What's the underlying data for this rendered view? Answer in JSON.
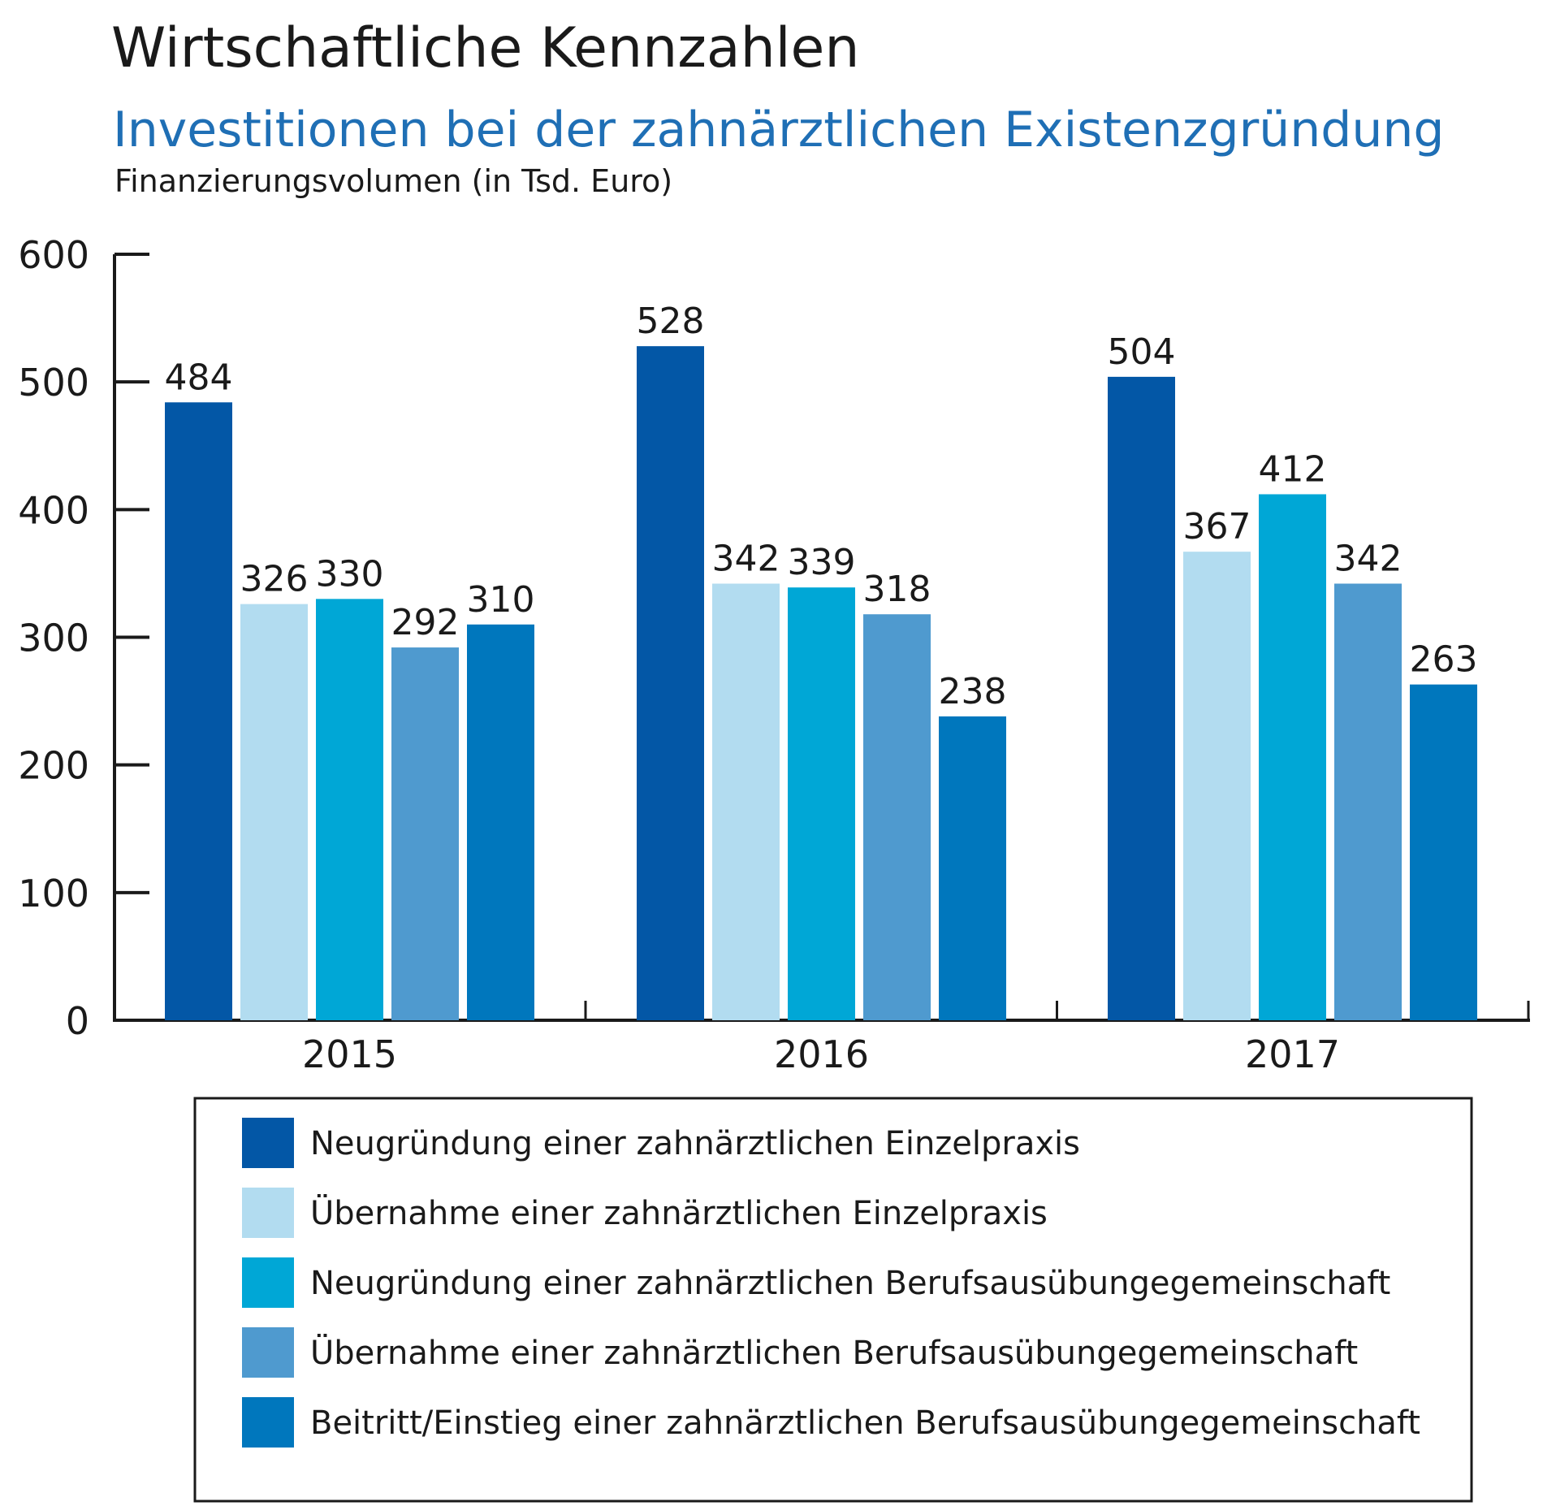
{
  "chart_data": {
    "type": "bar",
    "title": "Wirtschaftliche Kennzahlen",
    "subtitle": "Investitionen bei der zahnärztlichen Existenzgründung",
    "unit_label": "Finanzierungsvolumen (in Tsd. Euro)",
    "categories": [
      "2015",
      "2016",
      "2017"
    ],
    "ylim": [
      0,
      600
    ],
    "yticks": [
      "0",
      "100",
      "200",
      "300",
      "400",
      "500",
      "600"
    ],
    "grid": false,
    "legend_position": "bottom",
    "series": [
      {
        "name": "Neugründung einer zahnärztlichen Einzelpraxis",
        "color": "#0357a6",
        "values": [
          484,
          528,
          504
        ]
      },
      {
        "name": "Übernahme einer zahnärztlichen Einzelpraxis",
        "color": "#b2dcf0",
        "values": [
          326,
          342,
          367
        ]
      },
      {
        "name": "Neugründung einer zahnärztlichen Berufsausübungegemeinschaft",
        "color": "#00a7d6",
        "values": [
          330,
          339,
          412
        ]
      },
      {
        "name": "Übernahme einer zahnärztlichen Berufsausübungegemeinschaft",
        "color": "#4f9acf",
        "values": [
          292,
          318,
          342
        ]
      },
      {
        "name": "Beitritt/Einstieg einer zahnärztlichen Berufsausübungegemeinschaft",
        "color": "#0077bd",
        "values": [
          310,
          238,
          263
        ]
      }
    ]
  }
}
